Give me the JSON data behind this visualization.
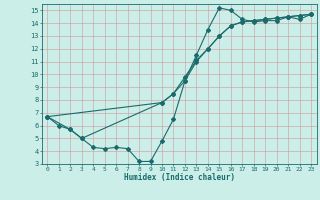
{
  "bg_color": "#cceee8",
  "grid_color": "#cc9999",
  "line_color": "#1a6b6b",
  "xlabel": "Humidex (Indice chaleur)",
  "xlim": [
    -0.5,
    23.5
  ],
  "ylim": [
    3,
    15.5
  ],
  "yticks": [
    3,
    4,
    5,
    6,
    7,
    8,
    9,
    10,
    11,
    12,
    13,
    14,
    15
  ],
  "xticks": [
    0,
    1,
    2,
    3,
    4,
    5,
    6,
    7,
    8,
    9,
    10,
    11,
    12,
    13,
    14,
    15,
    16,
    17,
    18,
    19,
    20,
    21,
    22,
    23
  ],
  "line1_x": [
    0,
    1,
    2,
    3,
    4,
    5,
    6,
    7,
    8,
    9,
    10,
    11,
    12,
    13,
    14,
    15,
    16,
    17,
    18,
    19,
    20,
    21,
    22,
    23
  ],
  "line1_y": [
    6.7,
    6.0,
    5.7,
    5.0,
    4.3,
    4.2,
    4.3,
    4.2,
    3.2,
    3.2,
    4.8,
    6.5,
    9.5,
    11.5,
    13.5,
    15.2,
    15.0,
    14.3,
    14.1,
    14.2,
    14.2,
    14.5,
    14.3,
    14.7
  ],
  "line2_x": [
    0,
    2,
    3,
    10,
    11,
    12,
    13,
    14,
    15,
    16,
    17,
    18,
    19,
    20,
    21,
    22,
    23
  ],
  "line2_y": [
    6.7,
    5.7,
    5.0,
    7.8,
    8.5,
    9.8,
    11.1,
    12.0,
    13.0,
    13.8,
    14.1,
    14.2,
    14.3,
    14.4,
    14.5,
    14.6,
    14.7
  ],
  "line3_x": [
    0,
    10,
    11,
    12,
    13,
    14,
    15,
    16,
    17,
    18,
    19,
    20,
    21,
    22,
    23
  ],
  "line3_y": [
    6.7,
    7.8,
    8.5,
    9.5,
    11.0,
    12.0,
    13.0,
    13.8,
    14.1,
    14.2,
    14.3,
    14.4,
    14.5,
    14.6,
    14.7
  ],
  "tick_fontsize": 5,
  "xlabel_fontsize": 5.5,
  "marker_size": 2.0,
  "linewidth": 0.8
}
